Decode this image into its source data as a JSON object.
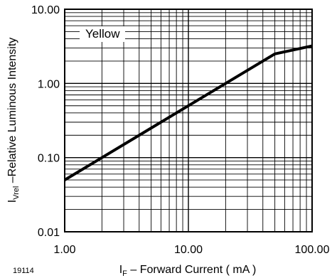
{
  "figure_id": "19114",
  "chart_data": {
    "type": "line",
    "xscale": "log",
    "yscale": "log",
    "xlim": [
      1,
      100
    ],
    "ylim": [
      0.01,
      10
    ],
    "grid": true,
    "x_ticks": [
      "1.00",
      "10.00",
      "100.00"
    ],
    "y_ticks": [
      "0.01",
      "0.10",
      "1.00",
      "10.00"
    ],
    "xlabel": {
      "main": "I",
      "sub": "F",
      "rest": " – Forward Current ( mA )"
    },
    "ylabel": {
      "main": "I",
      "sub": "Vrel",
      "rest": " –Relative Luminous Intensity"
    },
    "legend": {
      "text": "Yellow",
      "placement": "top-left"
    },
    "series": [
      {
        "name": "Yellow",
        "x": [
          1,
          2,
          5,
          10,
          20,
          50,
          100
        ],
        "y": [
          0.05,
          0.1,
          0.25,
          0.5,
          1.0,
          2.5,
          3.2
        ]
      }
    ]
  }
}
